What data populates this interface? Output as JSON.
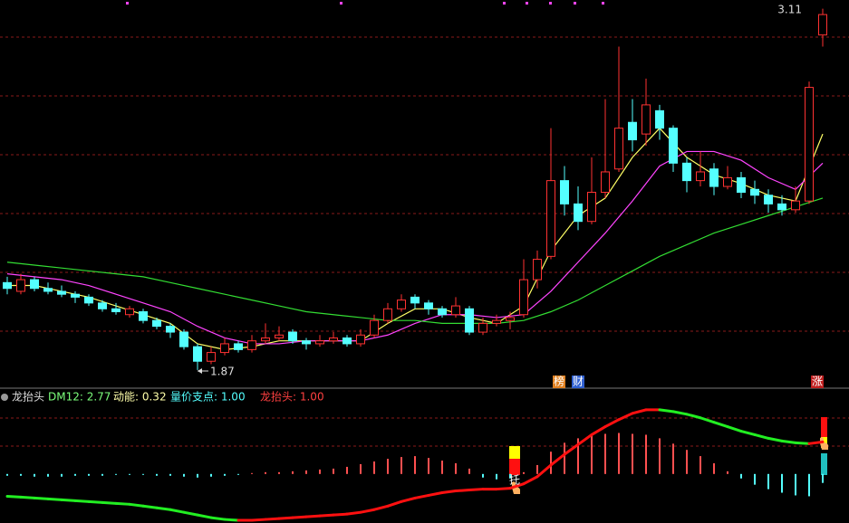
{
  "header": {
    "indicator": "龙抬头",
    "dm12": "DM12: 2.77",
    "momentum": "动能: 0.32",
    "pivot": "量价支点: 1.00",
    "dragon": "龙抬头: 1.00"
  },
  "chart_data": [
    {
      "type": "candlestick",
      "ylim": [
        1.82,
        3.14
      ],
      "up_color": "#ff3232",
      "down_color": "#54ffff",
      "high_label": 3.11,
      "low_label": 1.87,
      "markers": [
        "榜",
        "财",
        "涨"
      ],
      "candles": [
        [
          2.17,
          2.19,
          2.13,
          2.15
        ],
        [
          2.14,
          2.2,
          2.13,
          2.18
        ],
        [
          2.18,
          2.19,
          2.14,
          2.15
        ],
        [
          2.15,
          2.17,
          2.13,
          2.14
        ],
        [
          2.14,
          2.16,
          2.12,
          2.13
        ],
        [
          2.13,
          2.14,
          2.1,
          2.12
        ],
        [
          2.12,
          2.13,
          2.09,
          2.1
        ],
        [
          2.1,
          2.11,
          2.07,
          2.08
        ],
        [
          2.08,
          2.1,
          2.06,
          2.07
        ],
        [
          2.06,
          2.09,
          2.05,
          2.08
        ],
        [
          2.07,
          2.08,
          2.03,
          2.04
        ],
        [
          2.04,
          2.05,
          2.01,
          2.02
        ],
        [
          2.02,
          2.03,
          1.98,
          2.0
        ],
        [
          2.0,
          2.01,
          1.94,
          1.95
        ],
        [
          1.95,
          1.96,
          1.87,
          1.9
        ],
        [
          1.9,
          1.95,
          1.89,
          1.93
        ],
        [
          1.93,
          1.98,
          1.92,
          1.96
        ],
        [
          1.96,
          1.97,
          1.93,
          1.94
        ],
        [
          1.94,
          1.99,
          1.93,
          1.97
        ],
        [
          1.97,
          2.03,
          1.96,
          1.98
        ],
        [
          1.98,
          2.02,
          1.97,
          1.99
        ],
        [
          2.0,
          2.01,
          1.96,
          1.97
        ],
        [
          1.97,
          1.98,
          1.94,
          1.96
        ],
        [
          1.96,
          1.99,
          1.95,
          1.97
        ],
        [
          1.97,
          2.0,
          1.96,
          1.98
        ],
        [
          1.98,
          1.99,
          1.95,
          1.96
        ],
        [
          1.96,
          2.01,
          1.95,
          1.99
        ],
        [
          1.99,
          2.06,
          1.98,
          2.04
        ],
        [
          2.04,
          2.1,
          2.03,
          2.08
        ],
        [
          2.08,
          2.13,
          2.07,
          2.11
        ],
        [
          2.12,
          2.13,
          2.08,
          2.1
        ],
        [
          2.1,
          2.11,
          2.06,
          2.08
        ],
        [
          2.08,
          2.09,
          2.05,
          2.06
        ],
        [
          2.06,
          2.12,
          2.05,
          2.09
        ],
        [
          2.08,
          2.09,
          1.99,
          2.0
        ],
        [
          2.0,
          2.05,
          1.99,
          2.03
        ],
        [
          2.03,
          2.06,
          2.02,
          2.04
        ],
        [
          2.04,
          2.07,
          2.01,
          2.05
        ],
        [
          2.06,
          2.25,
          2.05,
          2.18
        ],
        [
          2.18,
          2.28,
          2.15,
          2.25
        ],
        [
          2.26,
          2.7,
          2.25,
          2.52
        ],
        [
          2.52,
          2.57,
          2.4,
          2.44
        ],
        [
          2.44,
          2.5,
          2.35,
          2.38
        ],
        [
          2.38,
          2.6,
          2.37,
          2.48
        ],
        [
          2.48,
          2.8,
          2.46,
          2.55
        ],
        [
          2.56,
          2.98,
          2.55,
          2.7
        ],
        [
          2.72,
          2.8,
          2.62,
          2.66
        ],
        [
          2.68,
          2.87,
          2.64,
          2.78
        ],
        [
          2.76,
          2.78,
          2.66,
          2.7
        ],
        [
          2.7,
          2.71,
          2.55,
          2.58
        ],
        [
          2.58,
          2.6,
          2.48,
          2.52
        ],
        [
          2.52,
          2.62,
          2.5,
          2.55
        ],
        [
          2.56,
          2.58,
          2.47,
          2.5
        ],
        [
          2.5,
          2.57,
          2.49,
          2.53
        ],
        [
          2.53,
          2.55,
          2.46,
          2.48
        ],
        [
          2.49,
          2.52,
          2.44,
          2.47
        ],
        [
          2.47,
          2.49,
          2.41,
          2.44
        ],
        [
          2.44,
          2.47,
          2.4,
          2.42
        ],
        [
          2.42,
          2.5,
          2.41,
          2.45
        ],
        [
          2.45,
          2.86,
          2.44,
          2.84
        ],
        [
          3.02,
          3.11,
          2.98,
          3.09
        ]
      ],
      "ma_x": [
        0,
        2,
        4,
        6,
        8,
        10,
        12,
        14,
        16,
        18,
        20,
        22,
        24,
        26,
        28,
        30,
        32,
        34,
        36,
        38,
        40,
        42,
        44,
        46,
        48,
        50,
        52,
        54,
        56,
        58,
        60
      ],
      "series": [
        {
          "color": "#ffff66",
          "values": [
            2.16,
            2.16,
            2.14,
            2.12,
            2.09,
            2.06,
            2.03,
            1.96,
            1.94,
            1.95,
            1.97,
            1.97,
            1.97,
            1.97,
            2.03,
            2.08,
            2.08,
            2.05,
            2.03,
            2.09,
            2.28,
            2.4,
            2.46,
            2.6,
            2.7,
            2.6,
            2.54,
            2.51,
            2.47,
            2.45,
            2.68
          ]
        },
        {
          "color": "#ff44ff",
          "values": [
            2.2,
            2.19,
            2.18,
            2.16,
            2.13,
            2.1,
            2.07,
            2.02,
            1.98,
            1.96,
            1.96,
            1.97,
            1.97,
            1.97,
            1.99,
            2.03,
            2.06,
            2.06,
            2.05,
            2.06,
            2.14,
            2.24,
            2.34,
            2.45,
            2.57,
            2.62,
            2.62,
            2.59,
            2.53,
            2.49,
            2.58
          ]
        },
        {
          "color": "#33dd33",
          "values": [
            2.24,
            2.23,
            2.22,
            2.21,
            2.2,
            2.19,
            2.17,
            2.15,
            2.13,
            2.11,
            2.09,
            2.07,
            2.06,
            2.05,
            2.04,
            2.04,
            2.03,
            2.03,
            2.03,
            2.04,
            2.07,
            2.11,
            2.16,
            2.21,
            2.26,
            2.3,
            2.34,
            2.37,
            2.4,
            2.43,
            2.46
          ]
        }
      ]
    },
    {
      "type": "histogram-line",
      "ylim": [
        -55,
        80
      ],
      "pos_color": "#ff5050",
      "neg_color": "#54ffff",
      "rise_color": "#ff1010",
      "fall_color": "#22ee22",
      "signal_label": "托",
      "bars": [
        -2,
        -2,
        -3,
        -3,
        -3,
        -2,
        -2,
        -2,
        -1,
        -1,
        -1,
        -2,
        -2,
        -3,
        -4,
        -3,
        -2,
        -1,
        1,
        2,
        2,
        3,
        4,
        5,
        6,
        8,
        11,
        14,
        17,
        19,
        20,
        18,
        15,
        12,
        6,
        -4,
        -6,
        -5,
        2,
        10,
        25,
        35,
        40,
        43,
        45,
        46,
        45,
        44,
        40,
        34,
        27,
        20,
        12,
        3,
        -5,
        -12,
        -17,
        -21,
        -24,
        -25,
        -10
      ],
      "line": [
        -25,
        -26,
        -27,
        -28,
        -29,
        -30,
        -31,
        -32,
        -33,
        -34,
        -36,
        -38,
        -40,
        -43,
        -46,
        -49,
        -51,
        -52,
        -52,
        -51,
        -50,
        -49,
        -48,
        -47,
        -46,
        -45,
        -43,
        -40,
        -36,
        -31,
        -27,
        -24,
        -21,
        -19,
        -18,
        -17,
        -17,
        -16,
        -11,
        -3,
        10,
        22,
        33,
        44,
        53,
        61,
        68,
        72,
        72,
        70,
        67,
        63,
        58,
        53,
        48,
        44,
        40,
        37,
        35,
        34,
        36
      ]
    }
  ]
}
